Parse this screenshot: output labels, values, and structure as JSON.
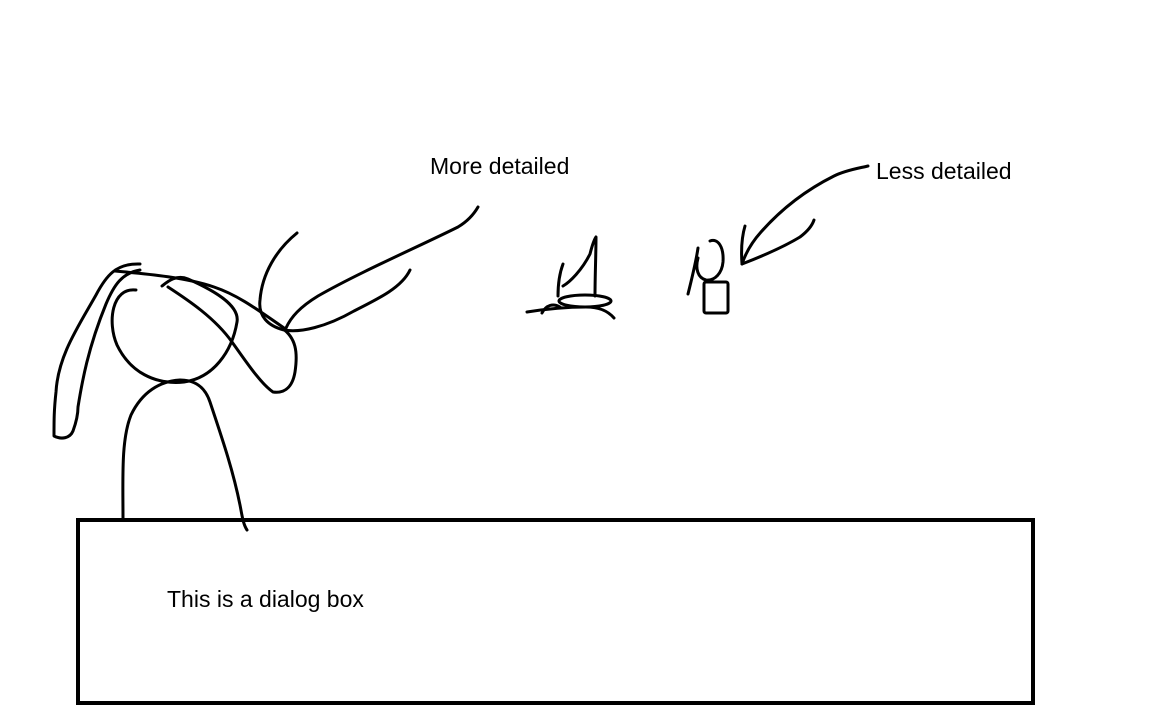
{
  "annotations": {
    "more_detailed": "More detailed",
    "less_detailed": "Less detailed"
  },
  "dialog": {
    "text": "This is a dialog box"
  },
  "colors": {
    "ink": "#000000",
    "background": "#ffffff"
  }
}
